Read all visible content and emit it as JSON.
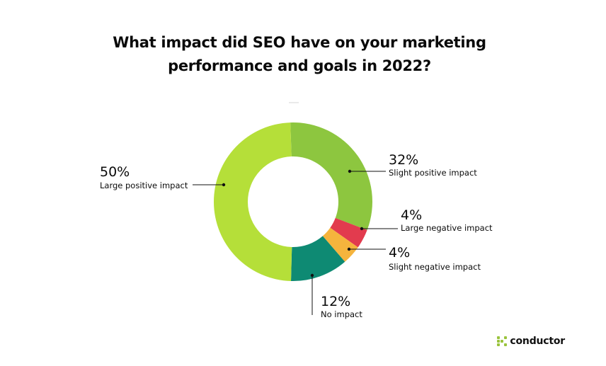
{
  "chart_data": {
    "type": "pie",
    "title": [
      "What impact did SEO have on your marketing",
      "performance and goals in 2022?"
    ],
    "slices": [
      {
        "label": "Slight positive impact",
        "value": 32,
        "pct_label": "32%",
        "color": "#8dc63f"
      },
      {
        "label": "Large negative impact",
        "value": 4,
        "pct_label": "4%",
        "color": "#e23b4e"
      },
      {
        "label": "Slight negative impact",
        "value": 4,
        "pct_label": "4%",
        "color": "#f5b43d"
      },
      {
        "label": "No impact",
        "value": 12,
        "pct_label": "12%",
        "color": "#0e8a73"
      },
      {
        "label": "Large positive impact",
        "value": 50,
        "pct_label": "50%",
        "color": "#b5df39"
      }
    ],
    "donut": true,
    "legend": "none"
  },
  "brand": {
    "name": "conductor",
    "color": "#9ac33c"
  }
}
